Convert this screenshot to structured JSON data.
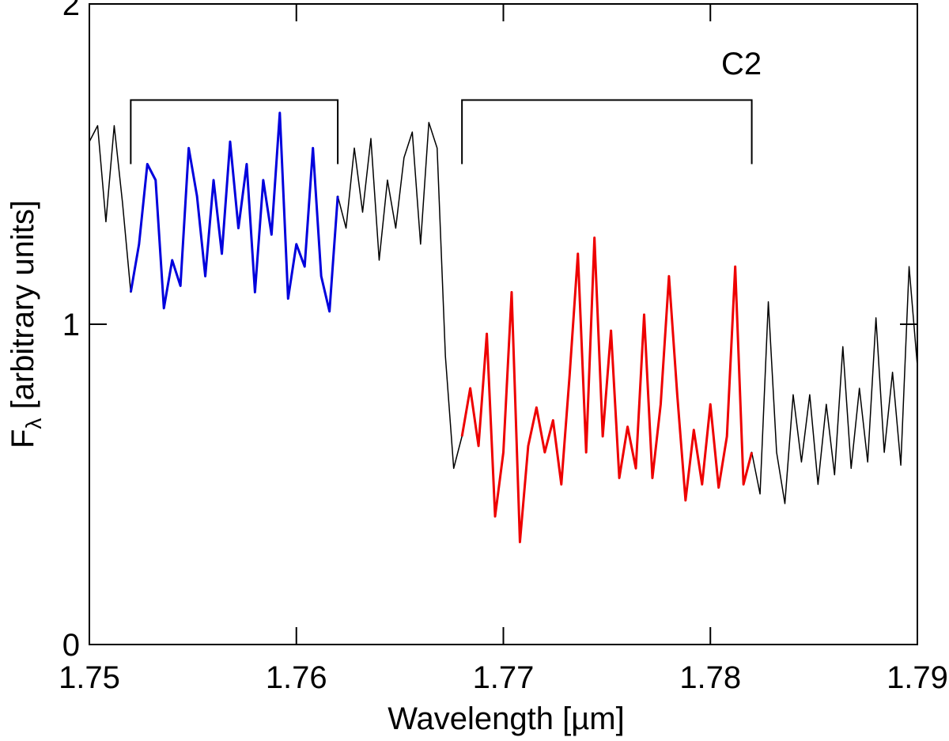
{
  "chart_data": {
    "type": "line",
    "xlabel": "Wavelength [µm]",
    "ylabel": {
      "symbol": "F",
      "subscript": "λ",
      "rest": " [arbitrary units]"
    },
    "annotation": {
      "text": "C2",
      "x": 1.7815,
      "y": 1.78
    },
    "xlim": [
      1.75,
      1.79
    ],
    "ylim": [
      0,
      2
    ],
    "xticks": [
      1.75,
      1.76,
      1.77,
      1.78,
      1.79
    ],
    "yticks": [
      0,
      1,
      2
    ],
    "brackets": [
      {
        "x": [
          1.752,
          1.762
        ],
        "y": 1.7,
        "end": 1.5
      },
      {
        "x": [
          1.768,
          1.782
        ],
        "y": 1.7,
        "end": 1.5
      }
    ],
    "x": [
      1.75,
      1.7504,
      1.7508,
      1.7512,
      1.7516,
      1.752,
      1.7524,
      1.7528,
      1.7532,
      1.7536,
      1.754,
      1.7544,
      1.7548,
      1.7552,
      1.7556,
      1.756,
      1.7564,
      1.7568,
      1.7572,
      1.7576,
      1.758,
      1.7584,
      1.7588,
      1.7592,
      1.7596,
      1.76,
      1.7604,
      1.7608,
      1.7612,
      1.7616,
      1.762,
      1.7624,
      1.7628,
      1.7632,
      1.7636,
      1.764,
      1.7644,
      1.7648,
      1.7652,
      1.7656,
      1.766,
      1.7664,
      1.7668,
      1.7672,
      1.7676,
      1.768,
      1.7684,
      1.7688,
      1.7692,
      1.7696,
      1.77,
      1.7704,
      1.7708,
      1.7712,
      1.7716,
      1.772,
      1.7724,
      1.7728,
      1.7732,
      1.7736,
      1.774,
      1.7744,
      1.7748,
      1.7752,
      1.7756,
      1.776,
      1.7764,
      1.7768,
      1.7772,
      1.7776,
      1.778,
      1.7784,
      1.7788,
      1.7792,
      1.7796,
      1.78,
      1.7804,
      1.7808,
      1.7812,
      1.7816,
      1.782,
      1.7824,
      1.7828,
      1.7832,
      1.7836,
      1.784,
      1.7844,
      1.7848,
      1.7852,
      1.7856,
      1.786,
      1.7864,
      1.7868,
      1.7872,
      1.7876,
      1.788,
      1.7884,
      1.7888,
      1.7892,
      1.7896,
      1.79
    ],
    "series": [
      {
        "color": "#000000",
        "width": 1.5,
        "values": [
          1.57,
          1.62,
          1.32,
          1.62,
          1.38,
          1.1,
          1.25,
          1.5,
          1.45,
          1.05,
          1.2,
          1.12,
          1.55,
          1.4,
          1.15,
          1.45,
          1.22,
          1.57,
          1.3,
          1.5,
          1.1,
          1.45,
          1.28,
          1.66,
          1.08,
          1.25,
          1.18,
          1.55,
          1.15,
          1.04,
          1.4,
          1.3,
          1.55,
          1.35,
          1.58,
          1.2,
          1.45,
          1.3,
          1.52,
          1.6,
          1.25,
          1.63,
          1.55,
          0.9,
          0.55,
          0.65,
          0.8,
          0.62,
          0.97,
          0.4,
          0.6,
          1.1,
          0.32,
          0.62,
          0.74,
          0.6,
          0.7,
          0.5,
          0.84,
          1.22,
          0.6,
          1.27,
          0.65,
          0.98,
          0.52,
          0.68,
          0.55,
          1.03,
          0.52,
          0.75,
          1.15,
          0.78,
          0.45,
          0.67,
          0.5,
          0.75,
          0.49,
          0.65,
          1.18,
          0.5,
          0.6,
          0.47,
          1.07,
          0.6,
          0.44,
          0.78,
          0.57,
          0.78,
          0.5,
          0.75,
          0.53,
          0.93,
          0.55,
          0.8,
          0.57,
          1.02,
          0.6,
          0.85,
          0.56,
          1.18,
          0.87
        ]
      },
      {
        "color": "#0000dd",
        "width": 3,
        "values": [
          null,
          null,
          null,
          null,
          null,
          1.1,
          1.25,
          1.5,
          1.45,
          1.05,
          1.2,
          1.12,
          1.55,
          1.4,
          1.15,
          1.45,
          1.22,
          1.57,
          1.3,
          1.5,
          1.1,
          1.45,
          1.28,
          1.66,
          1.08,
          1.25,
          1.18,
          1.55,
          1.15,
          1.04,
          1.4,
          null,
          null,
          null,
          null,
          null,
          null,
          null,
          null,
          null,
          null,
          null,
          null,
          null,
          null,
          null,
          null,
          null,
          null,
          null,
          null,
          null,
          null,
          null,
          null,
          null,
          null,
          null,
          null,
          null,
          null,
          null,
          null,
          null,
          null,
          null,
          null,
          null,
          null,
          null,
          null,
          null,
          null,
          null,
          null,
          null,
          null,
          null,
          null,
          null,
          null,
          null,
          null,
          null,
          null,
          null,
          null,
          null,
          null,
          null,
          null,
          null,
          null,
          null,
          null,
          null,
          null,
          null,
          null,
          null,
          null
        ]
      },
      {
        "color": "#ee0000",
        "width": 3,
        "values": [
          null,
          null,
          null,
          null,
          null,
          null,
          null,
          null,
          null,
          null,
          null,
          null,
          null,
          null,
          null,
          null,
          null,
          null,
          null,
          null,
          null,
          null,
          null,
          null,
          null,
          null,
          null,
          null,
          null,
          null,
          null,
          null,
          null,
          null,
          null,
          null,
          null,
          null,
          null,
          null,
          null,
          null,
          null,
          null,
          null,
          0.65,
          0.8,
          0.62,
          0.97,
          0.4,
          0.6,
          1.1,
          0.32,
          0.62,
          0.74,
          0.6,
          0.7,
          0.5,
          0.84,
          1.22,
          0.6,
          1.27,
          0.65,
          0.98,
          0.52,
          0.68,
          0.55,
          1.03,
          0.52,
          0.75,
          1.15,
          0.78,
          0.45,
          0.67,
          0.5,
          0.75,
          0.49,
          0.65,
          1.18,
          0.5,
          0.6,
          null,
          null,
          null,
          null,
          null,
          null,
          null,
          null,
          null,
          null,
          null,
          null,
          null,
          null,
          null,
          null,
          null,
          null,
          null,
          null
        ]
      }
    ]
  }
}
